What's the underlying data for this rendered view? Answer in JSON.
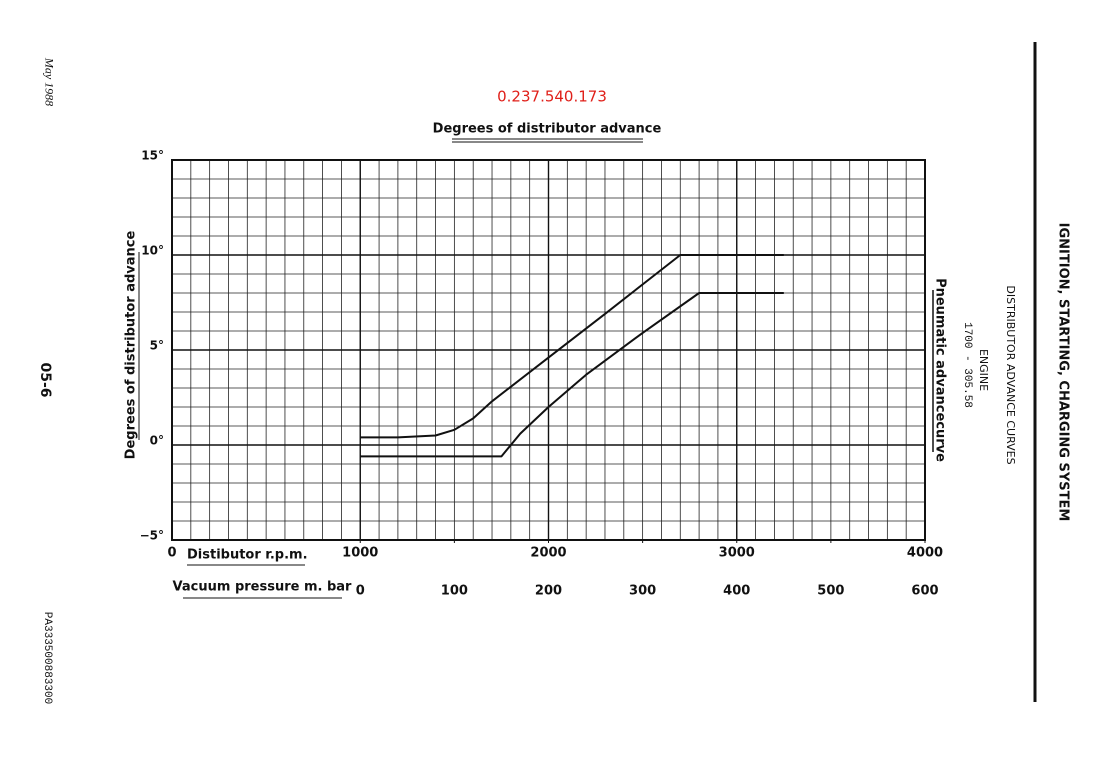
{
  "document": {
    "date": "May 1988",
    "page": "05-6",
    "reference": "PA333500883300",
    "part_number": "0.237.540.173",
    "section": "IGNITION, STARTING, CHARGING SYSTEM",
    "subsection": "DISTRIBUTOR ADVANCE CURVES",
    "engine_label": "ENGINE",
    "engine_code": "1700 - 305.58"
  },
  "chart_data": {
    "type": "line",
    "title": "Degrees of distributor advance",
    "y_label": "Degrees of distributor advance",
    "x_label": "Distibutor r.p.m.",
    "x2_label": "Vacuum pressure m. bar",
    "annotation": "Pneumatic advancecurve",
    "xlim": [
      0,
      4000
    ],
    "xticks": [
      0,
      1000,
      2000,
      3000,
      4000
    ],
    "x2lim": [
      -200,
      600
    ],
    "x2ticks": [
      0,
      100,
      200,
      300,
      400,
      500,
      600
    ],
    "ylim": [
      -5,
      15
    ],
    "yticks": [
      {
        "value": -5,
        "label": "−5°"
      },
      {
        "value": 0,
        "label": "0°"
      },
      {
        "value": 5,
        "label": "5°"
      },
      {
        "value": 10,
        "label": "10°"
      },
      {
        "value": 15,
        "label": "15°"
      }
    ],
    "grid": true,
    "series": [
      {
        "color": "#111111",
        "x": [
          1000,
          1200,
          1400,
          1500,
          1600,
          1700,
          2000,
          2300,
          2700,
          3250
        ],
        "values": [
          0.4,
          0.4,
          0.5,
          0.8,
          1.4,
          2.3,
          4.6,
          6.9,
          10,
          10
        ]
      },
      {
        "color": "#111111",
        "x": [
          1000,
          1750,
          1850,
          2000,
          2200,
          2500,
          2800,
          3250
        ],
        "values": [
          -0.6,
          -0.6,
          0.6,
          2.0,
          3.7,
          5.9,
          8,
          8
        ]
      }
    ]
  }
}
